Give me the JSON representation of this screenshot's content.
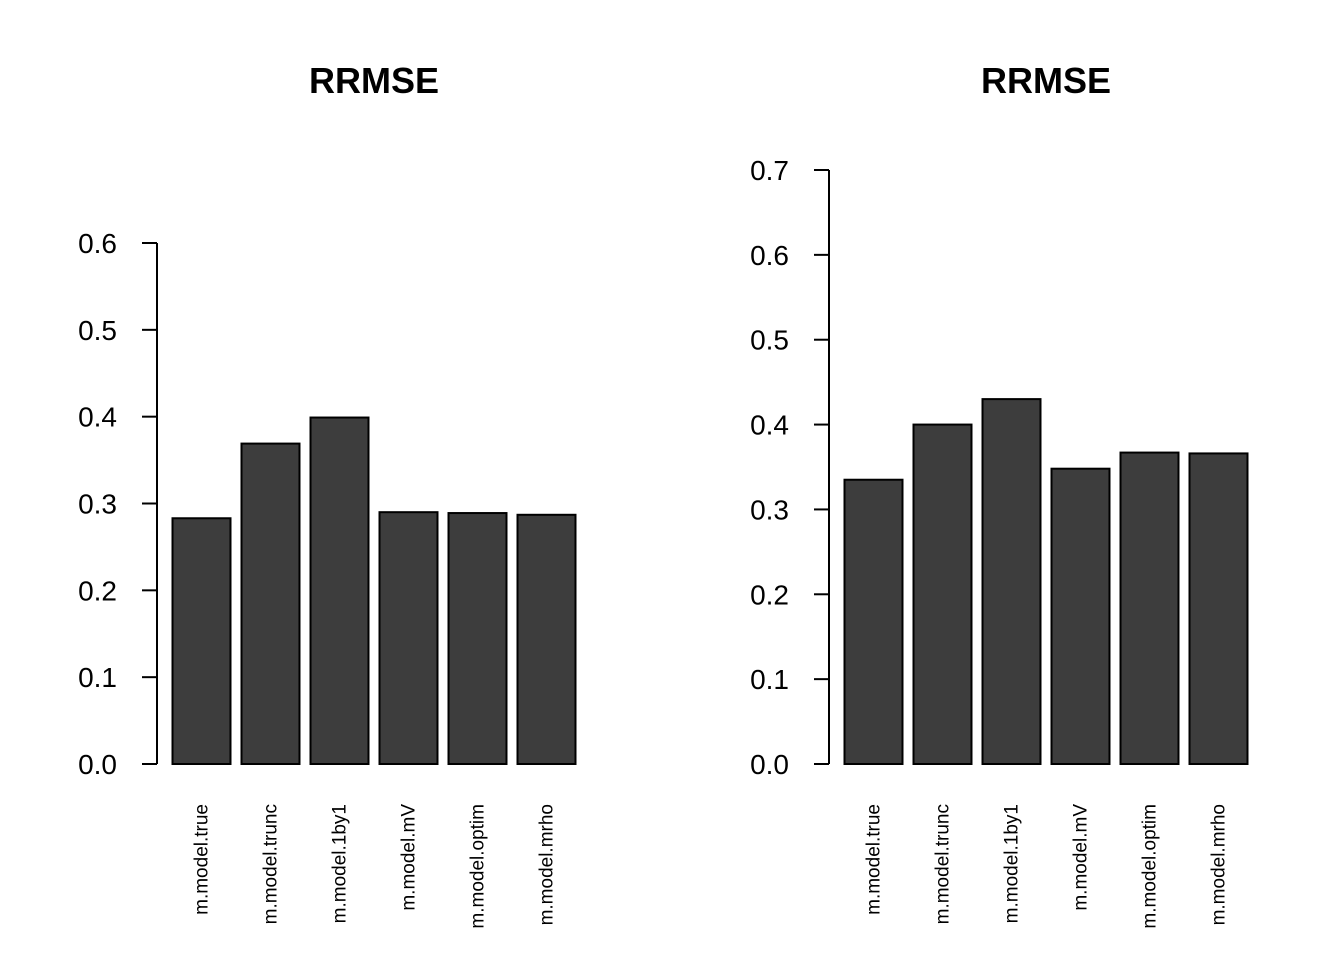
{
  "colors": {
    "bar_fill": "#3d3d3d",
    "bar_stroke": "#000000",
    "axis": "#000000"
  },
  "chart_data": [
    {
      "type": "bar",
      "title": "RRMSE",
      "xlabel": "",
      "ylabel": "",
      "categories": [
        "m.model.true",
        "m.model.trunc",
        "m.model.1by1",
        "m.model.mV",
        "m.model.optim",
        "m.model.mrho"
      ],
      "values": [
        0.283,
        0.369,
        0.399,
        0.29,
        0.289,
        0.287
      ],
      "yticks": [
        "0.0",
        "0.1",
        "0.2",
        "0.3",
        "0.4",
        "0.5",
        "0.6"
      ],
      "ylim": [
        0,
        0.6
      ],
      "grid": false,
      "legend": "none"
    },
    {
      "type": "bar",
      "title": "RRMSE",
      "xlabel": "",
      "ylabel": "",
      "categories": [
        "m.model.true",
        "m.model.trunc",
        "m.model.1by1",
        "m.model.mV",
        "m.model.optim",
        "m.model.mrho"
      ],
      "values": [
        0.335,
        0.4,
        0.43,
        0.348,
        0.367,
        0.366
      ],
      "yticks": [
        "0.0",
        "0.1",
        "0.2",
        "0.3",
        "0.4",
        "0.5",
        "0.6",
        "0.7"
      ],
      "ylim": [
        0,
        0.7
      ],
      "grid": false,
      "legend": "none"
    }
  ]
}
